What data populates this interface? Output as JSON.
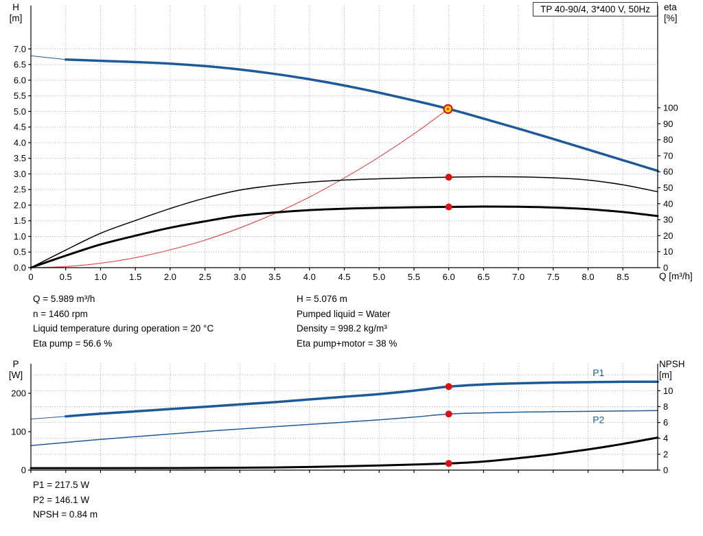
{
  "title_box": {
    "label": "TP 40-90/4, 3*400 V, 50Hz"
  },
  "axis_titles": {
    "top_left_line1": "H",
    "top_left_line2": "[m]",
    "top_right_line1": "eta",
    "top_right_line2": "[%]",
    "x_axis": "Q [m³/h]",
    "bottom_left_line1": "P",
    "bottom_left_line2": "[W]",
    "bottom_right_line1": "NPSH",
    "bottom_right_line2": "[m]"
  },
  "info_top": {
    "left": [
      "Q = 5.989 m³/h",
      "n = 1460 rpm",
      "Liquid temperature during operation = 20 °C",
      "Eta pump = 56.6 %"
    ],
    "right": [
      "H = 5.076 m",
      "Pumped liquid = Water",
      "Density = 998.2 kg/m³",
      "Eta pump+motor = 38 %"
    ]
  },
  "info_bottom": [
    "P1 = 217.5 W",
    "P2 = 146.1 W",
    "NPSH = 0.84 m"
  ],
  "colors": {
    "curve_blue": "#1c5a99",
    "curve_black": "#000000",
    "curve_red": "#e04040",
    "dot_red": "#e01010",
    "duty_fill": "#ffd700",
    "grid": "#a0a0a0",
    "axis": "#000000"
  },
  "chart_data": [
    {
      "type": "line",
      "name": "qh-eta-chart",
      "title": "TP 40-90/4, 3*400 V, 50Hz",
      "x": {
        "label": "Q [m³/h]",
        "min": 0,
        "max": 9,
        "show_labels": true,
        "ticks": [
          0,
          0.5,
          1,
          1.5,
          2,
          2.5,
          3,
          3.5,
          4,
          4.5,
          5,
          5.5,
          6,
          6.5,
          7,
          7.5,
          8,
          8.5
        ],
        "tick_labels": [
          "0",
          "0.5",
          "1.0",
          "1.5",
          "2.0",
          "2.5",
          "3.0",
          "3.5",
          "4.0",
          "4.5",
          "5.0",
          "5.5",
          "6.0",
          "6.5",
          "7.0",
          "7.5",
          "8.0",
          "8.5"
        ]
      },
      "y_left": {
        "label": "H [m]",
        "min": 0,
        "max": 8.39,
        "ticks": [
          0,
          0.5,
          1,
          1.5,
          2,
          2.5,
          3,
          3.5,
          4,
          4.5,
          5,
          5.5,
          6,
          6.5,
          7
        ],
        "tick_labels": [
          "0.0",
          "0.5",
          "1.0",
          "1.5",
          "2.0",
          "2.5",
          "3.0",
          "3.5",
          "4.0",
          "4.5",
          "5.0",
          "5.5",
          "6.0",
          "6.5",
          "7.0"
        ]
      },
      "y_right": {
        "label": "eta [%]",
        "min": 0,
        "max": 164,
        "ticks": [
          0,
          10,
          20,
          30,
          40,
          50,
          60,
          70,
          80,
          90,
          100
        ],
        "tick_labels": [
          "0",
          "10",
          "20",
          "30",
          "40",
          "50",
          "60",
          "70",
          "80",
          "90",
          "100"
        ]
      },
      "grid_y": {
        "axis": "left",
        "values": [
          0.5,
          1,
          1.5,
          2,
          2.5,
          3,
          3.5,
          4,
          4.5,
          5,
          5.5,
          6,
          6.5,
          7
        ]
      },
      "series": [
        {
          "name": "qh-curve-lead",
          "axis": "left",
          "color": "curve_blue",
          "width": 1,
          "points": [
            [
              0,
              6.78
            ],
            [
              0.5,
              6.66
            ]
          ]
        },
        {
          "name": "qh-curve",
          "axis": "left",
          "color": "curve_blue",
          "width": 3.5,
          "points": [
            [
              0.5,
              6.66
            ],
            [
              1,
              6.62
            ],
            [
              1.5,
              6.58
            ],
            [
              2,
              6.53
            ],
            [
              2.5,
              6.45
            ],
            [
              3,
              6.34
            ],
            [
              3.5,
              6.2
            ],
            [
              4,
              6.03
            ],
            [
              4.5,
              5.83
            ],
            [
              5,
              5.6
            ],
            [
              5.5,
              5.35
            ],
            [
              6,
              5.08
            ],
            [
              6.5,
              4.77
            ],
            [
              7,
              4.45
            ],
            [
              7.5,
              4.12
            ],
            [
              8,
              3.78
            ],
            [
              8.5,
              3.44
            ],
            [
              9,
              3.1
            ]
          ]
        },
        {
          "name": "system-curve",
          "axis": "left",
          "color": "curve_red",
          "width": 1.1,
          "points": [
            [
              0,
              0
            ],
            [
              0.5,
              0.035
            ],
            [
              1,
              0.14
            ],
            [
              1.5,
              0.32
            ],
            [
              2,
              0.57
            ],
            [
              2.5,
              0.88
            ],
            [
              3,
              1.27
            ],
            [
              3.5,
              1.73
            ],
            [
              4,
              2.26
            ],
            [
              4.5,
              2.87
            ],
            [
              5,
              3.54
            ],
            [
              5.5,
              4.28
            ],
            [
              5.989,
              5.076
            ]
          ]
        },
        {
          "name": "eta-pump-curve",
          "axis": "right",
          "color": "curve_black",
          "width": 1.5,
          "points": [
            [
              0,
              0
            ],
            [
              0.5,
              11
            ],
            [
              1,
              21.5
            ],
            [
              1.5,
              29.5
            ],
            [
              2,
              37
            ],
            [
              2.5,
              43.5
            ],
            [
              3,
              48.5
            ],
            [
              3.5,
              51.5
            ],
            [
              4,
              53.5
            ],
            [
              4.5,
              54.8
            ],
            [
              5,
              55.6
            ],
            [
              5.5,
              56.2
            ],
            [
              6,
              56.6
            ],
            [
              6.5,
              56.9
            ],
            [
              7,
              56.8
            ],
            [
              7.5,
              56.2
            ],
            [
              8,
              54.8
            ],
            [
              8.5,
              51.8
            ],
            [
              9,
              47.5
            ]
          ]
        },
        {
          "name": "eta-pump-motor-curve",
          "axis": "right",
          "color": "curve_black",
          "width": 3,
          "points": [
            [
              0,
              0
            ],
            [
              0.5,
              7.5
            ],
            [
              1,
              14.5
            ],
            [
              1.5,
              20
            ],
            [
              2,
              25
            ],
            [
              2.5,
              29
            ],
            [
              3,
              32.5
            ],
            [
              3.5,
              34.5
            ],
            [
              4,
              36
            ],
            [
              4.5,
              36.9
            ],
            [
              5,
              37.4
            ],
            [
              5.5,
              37.8
            ],
            [
              6,
              38
            ],
            [
              6.5,
              38.2
            ],
            [
              7,
              38.1
            ],
            [
              7.5,
              37.6
            ],
            [
              8,
              36.6
            ],
            [
              8.5,
              34.8
            ],
            [
              9,
              32.3
            ]
          ]
        }
      ],
      "markers": [
        {
          "name": "duty-point",
          "style": "duty",
          "axis": "left",
          "q": 5.989,
          "v": 5.076
        },
        {
          "name": "eta-pump-point",
          "style": "dot",
          "axis": "right",
          "q": 6,
          "v": 56.6
        },
        {
          "name": "eta-pump-motor-point",
          "style": "dot",
          "axis": "right",
          "q": 6,
          "v": 38
        }
      ],
      "labels": []
    },
    {
      "type": "line",
      "name": "power-npsh-chart",
      "title": "",
      "x": {
        "label": "",
        "min": 0,
        "max": 9,
        "show_labels": false,
        "ticks": [
          0,
          0.5,
          1,
          1.5,
          2,
          2.5,
          3,
          3.5,
          4,
          4.5,
          5,
          5.5,
          6,
          6.5,
          7,
          7.5,
          8,
          8.5
        ],
        "tick_labels": []
      },
      "y_left": {
        "label": "P [W]",
        "min": 0,
        "max": 277,
        "ticks": [
          0,
          100,
          200
        ],
        "tick_labels": [
          "0",
          "100",
          "200"
        ]
      },
      "y_right": {
        "label": "NPSH [m]",
        "min": 0,
        "max": 13.4,
        "ticks": [
          0,
          2,
          4,
          6,
          8,
          10
        ],
        "tick_labels": [
          "0",
          "2",
          "4",
          "6",
          "8",
          "10"
        ]
      },
      "grid_y": {
        "axis": "right",
        "values": [
          2,
          4,
          6,
          8,
          10,
          12
        ]
      },
      "series": [
        {
          "name": "p1-curve-lead",
          "axis": "left",
          "color": "curve_blue",
          "width": 1,
          "points": [
            [
              0,
              133
            ],
            [
              0.5,
              140
            ]
          ]
        },
        {
          "name": "p1-curve",
          "axis": "left",
          "color": "curve_blue",
          "width": 3.5,
          "points": [
            [
              0.5,
              140
            ],
            [
              1,
              147
            ],
            [
              1.5,
              153
            ],
            [
              2,
              159
            ],
            [
              2.5,
              165
            ],
            [
              3,
              171
            ],
            [
              3.5,
              177
            ],
            [
              4,
              184
            ],
            [
              4.5,
              191
            ],
            [
              5,
              198
            ],
            [
              5.5,
              207
            ],
            [
              6,
              217.5
            ],
            [
              6.5,
              223
            ],
            [
              7,
              226
            ],
            [
              7.5,
              228
            ],
            [
              8,
              229
            ],
            [
              8.5,
              230
            ],
            [
              9,
              230
            ]
          ]
        },
        {
          "name": "p2-curve",
          "axis": "left",
          "color": "curve_blue",
          "width": 1.5,
          "points": [
            [
              0,
              64
            ],
            [
              0.5,
              72
            ],
            [
              1,
              80
            ],
            [
              1.5,
              87
            ],
            [
              2,
              94
            ],
            [
              2.5,
              101
            ],
            [
              3,
              107
            ],
            [
              3.5,
              113
            ],
            [
              4,
              119
            ],
            [
              4.5,
              125
            ],
            [
              5,
              131
            ],
            [
              5.5,
              138
            ],
            [
              6,
              146.1
            ],
            [
              6.5,
              149
            ],
            [
              7,
              151
            ],
            [
              7.5,
              152
            ],
            [
              8,
              153
            ],
            [
              8.5,
              154
            ],
            [
              9,
              155
            ]
          ]
        },
        {
          "name": "npsh-curve",
          "axis": "right",
          "color": "curve_black",
          "width": 3,
          "points": [
            [
              0,
              0.25
            ],
            [
              1,
              0.25
            ],
            [
              2,
              0.26
            ],
            [
              3,
              0.3
            ],
            [
              3.5,
              0.34
            ],
            [
              4,
              0.4
            ],
            [
              4.5,
              0.48
            ],
            [
              5,
              0.58
            ],
            [
              5.5,
              0.7
            ],
            [
              6,
              0.84
            ],
            [
              6.5,
              1.08
            ],
            [
              7,
              1.5
            ],
            [
              7.5,
              2.0
            ],
            [
              8,
              2.6
            ],
            [
              8.5,
              3.3
            ],
            [
              9,
              4.1
            ]
          ]
        }
      ],
      "markers": [
        {
          "name": "p1-point",
          "style": "dot",
          "axis": "left",
          "q": 6,
          "v": 217.5
        },
        {
          "name": "p2-point",
          "style": "dot",
          "axis": "left",
          "q": 6,
          "v": 146.1
        },
        {
          "name": "npsh-point",
          "style": "dot",
          "axis": "right",
          "q": 6,
          "v": 0.84
        }
      ],
      "labels": [
        {
          "text": "P1",
          "axis": "left",
          "q": 8.15,
          "v": 252,
          "color": "curve_blue"
        },
        {
          "text": "P2",
          "axis": "left",
          "q": 8.15,
          "v": 130,
          "color": "curve_blue"
        }
      ]
    }
  ]
}
